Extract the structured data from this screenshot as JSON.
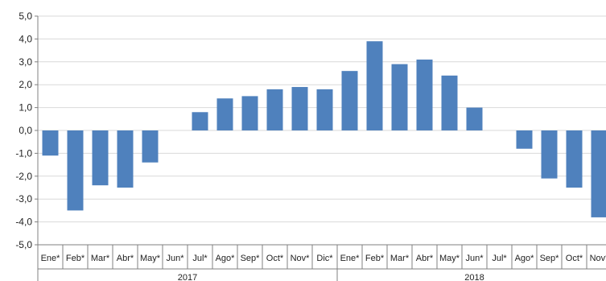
{
  "chart_data": {
    "type": "bar",
    "categories": [
      "Ene*",
      "Feb*",
      "Mar*",
      "Abr*",
      "May*",
      "Jun*",
      "Jul*",
      "Ago*",
      "Sep*",
      "Oct*",
      "Nov*",
      "Dic*",
      "Ene*",
      "Feb*",
      "Mar*",
      "Abr*",
      "May*",
      "Jun*",
      "Jul*",
      "Ago*",
      "Sep*",
      "Oct*",
      "Nov*"
    ],
    "values": [
      -1.1,
      -3.5,
      -2.4,
      -2.5,
      -1.4,
      0,
      0.8,
      1.4,
      1.5,
      1.8,
      1.9,
      1.8,
      2.6,
      3.9,
      2.9,
      3.1,
      2.4,
      1.0,
      0,
      -0.8,
      -2.1,
      -2.5,
      -3.8
    ],
    "groups": [
      {
        "label": "2017",
        "start": 0,
        "end": 12
      },
      {
        "label": "2018",
        "start": 12,
        "end": 23
      }
    ],
    "yticks": [
      "5,0",
      "4,0",
      "3,0",
      "2,0",
      "1,0",
      "0,0",
      "-1,0",
      "-2,0",
      "-3,0",
      "-4,0",
      "-5,0"
    ],
    "ylim": [
      -5,
      5
    ],
    "grid": true,
    "bar_color": "#4f81bd"
  }
}
